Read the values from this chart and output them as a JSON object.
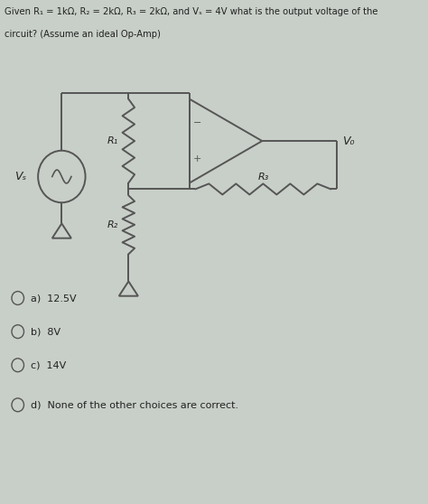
{
  "title_line1": "Given R₁ = 1kΩ, R₂ = 2kΩ, R₃ = 2kΩ, and Vₛ = 4V what is the output voltage of the",
  "title_line2": "circuit? (Assume an ideal Op-Amp)",
  "background_color": "#c8cfc8",
  "circuit_color": "#555555",
  "text_color": "#222222",
  "choices": [
    "a)  12.5V",
    "b)  8V",
    "c)  14V",
    "d)  None of the other choices are correct."
  ],
  "labels": {
    "Vs": "Vₛ",
    "R1": "R₁",
    "R2": "R₂",
    "R3": "R₃",
    "Vo": "V₀"
  },
  "figsize": [
    4.74,
    5.58
  ],
  "dpi": 100
}
